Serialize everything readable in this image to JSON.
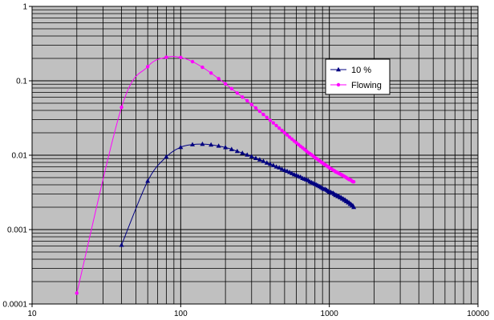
{
  "chart_data": {
    "type": "scatter",
    "title": "",
    "xlabel": "",
    "ylabel": "",
    "x_scale": "log",
    "y_scale": "log",
    "xlim": [
      10,
      10000
    ],
    "ylim": [
      0.0001,
      1
    ],
    "x_ticks": [
      "10",
      "100",
      "1000",
      "10000"
    ],
    "y_ticks": [
      "1",
      "0.1",
      "0.01",
      "0.001",
      "0.0001"
    ],
    "grid": true,
    "plot_background": "#c0c0c0",
    "legend_position": "top-right",
    "series": [
      {
        "name": "10 %",
        "color": "#000080",
        "marker": "triangle",
        "points": [
          [
            40,
            0.00062
          ],
          [
            60,
            0.0045
          ],
          [
            80,
            0.0095
          ],
          [
            100,
            0.0128
          ],
          [
            120,
            0.0139
          ],
          [
            140,
            0.0141
          ],
          [
            160,
            0.0138
          ],
          [
            180,
            0.0133
          ],
          [
            200,
            0.0127
          ],
          [
            220,
            0.012
          ],
          [
            240,
            0.0113
          ],
          [
            260,
            0.0107
          ],
          [
            280,
            0.0101
          ],
          [
            300,
            0.0096
          ],
          [
            320,
            0.0091
          ],
          [
            340,
            0.0087
          ],
          [
            360,
            0.0083
          ],
          [
            380,
            0.0079
          ],
          [
            400,
            0.0076
          ],
          [
            420,
            0.0073
          ],
          [
            440,
            0.007
          ],
          [
            460,
            0.0068
          ],
          [
            480,
            0.0065
          ],
          [
            500,
            0.0063
          ],
          [
            520,
            0.0061
          ],
          [
            540,
            0.0059
          ],
          [
            560,
            0.0057
          ],
          [
            580,
            0.0055
          ],
          [
            600,
            0.0054
          ],
          [
            620,
            0.0052
          ],
          [
            640,
            0.0051
          ],
          [
            660,
            0.0049
          ],
          [
            680,
            0.0048
          ],
          [
            700,
            0.0047
          ],
          [
            720,
            0.0046
          ],
          [
            740,
            0.0044
          ],
          [
            760,
            0.0043
          ],
          [
            780,
            0.0042
          ],
          [
            800,
            0.0041
          ],
          [
            820,
            0.004
          ],
          [
            840,
            0.0039
          ],
          [
            860,
            0.0038
          ],
          [
            880,
            0.0037
          ],
          [
            900,
            0.0036
          ],
          [
            920,
            0.0035
          ],
          [
            940,
            0.0035
          ],
          [
            960,
            0.0034
          ],
          [
            980,
            0.0033
          ],
          [
            1000,
            0.0032
          ],
          [
            1020,
            0.0032
          ],
          [
            1040,
            0.0031
          ],
          [
            1060,
            0.0031
          ],
          [
            1080,
            0.003
          ],
          [
            1100,
            0.0029
          ],
          [
            1120,
            0.0029
          ],
          [
            1140,
            0.0028
          ],
          [
            1160,
            0.0028
          ],
          [
            1180,
            0.0027
          ],
          [
            1200,
            0.0027
          ],
          [
            1220,
            0.0026
          ],
          [
            1240,
            0.0026
          ],
          [
            1260,
            0.0025
          ],
          [
            1280,
            0.0025
          ],
          [
            1300,
            0.0024
          ],
          [
            1320,
            0.0024
          ],
          [
            1340,
            0.0023
          ],
          [
            1360,
            0.0023
          ],
          [
            1380,
            0.0022
          ],
          [
            1400,
            0.0022
          ],
          [
            1420,
            0.0021
          ],
          [
            1440,
            0.0021
          ],
          [
            1460,
            0.002
          ]
        ]
      },
      {
        "name": "Flowing",
        "color": "#ff00ff",
        "marker": "circle",
        "points": [
          [
            20,
            0.00014
          ],
          [
            40,
            0.044
          ],
          [
            60,
            0.155
          ],
          [
            80,
            0.207
          ],
          [
            100,
            0.206
          ],
          [
            120,
            0.181
          ],
          [
            140,
            0.152
          ],
          [
            160,
            0.127
          ],
          [
            180,
            0.107
          ],
          [
            200,
            0.091
          ],
          [
            220,
            0.0785
          ],
          [
            240,
            0.0685
          ],
          [
            260,
            0.0605
          ],
          [
            280,
            0.054
          ],
          [
            300,
            0.048
          ],
          [
            320,
            0.0432
          ],
          [
            340,
            0.039
          ],
          [
            360,
            0.0353
          ],
          [
            380,
            0.0322
          ],
          [
            400,
            0.0295
          ],
          [
            420,
            0.0271
          ],
          [
            440,
            0.025
          ],
          [
            460,
            0.0231
          ],
          [
            480,
            0.0215
          ],
          [
            500,
            0.02
          ],
          [
            520,
            0.0187
          ],
          [
            540,
            0.0175
          ],
          [
            560,
            0.0165
          ],
          [
            580,
            0.0155
          ],
          [
            600,
            0.0147
          ],
          [
            620,
            0.0139
          ],
          [
            640,
            0.0132
          ],
          [
            660,
            0.0126
          ],
          [
            680,
            0.012
          ],
          [
            700,
            0.0114
          ],
          [
            720,
            0.0109
          ],
          [
            740,
            0.0105
          ],
          [
            760,
            0.0101
          ],
          [
            780,
            0.0097
          ],
          [
            800,
            0.0093
          ],
          [
            820,
            0.009
          ],
          [
            840,
            0.0087
          ],
          [
            860,
            0.0084
          ],
          [
            880,
            0.0081
          ],
          [
            900,
            0.0079
          ],
          [
            920,
            0.0076
          ],
          [
            940,
            0.0074
          ],
          [
            960,
            0.0072
          ],
          [
            980,
            0.007
          ],
          [
            1000,
            0.0068
          ],
          [
            1020,
            0.0066
          ],
          [
            1040,
            0.0065
          ],
          [
            1060,
            0.0063
          ],
          [
            1080,
            0.0062
          ],
          [
            1100,
            0.006
          ],
          [
            1120,
            0.0059
          ],
          [
            1140,
            0.0058
          ],
          [
            1160,
            0.0057
          ],
          [
            1180,
            0.0056
          ],
          [
            1200,
            0.0055
          ],
          [
            1220,
            0.0054
          ],
          [
            1240,
            0.0053
          ],
          [
            1260,
            0.0052
          ],
          [
            1280,
            0.0051
          ],
          [
            1300,
            0.005
          ],
          [
            1320,
            0.0049
          ],
          [
            1340,
            0.0048
          ],
          [
            1360,
            0.0047
          ],
          [
            1380,
            0.0047
          ],
          [
            1400,
            0.0046
          ],
          [
            1420,
            0.0045
          ],
          [
            1440,
            0.0044
          ],
          [
            1460,
            0.0044
          ]
        ]
      }
    ]
  }
}
